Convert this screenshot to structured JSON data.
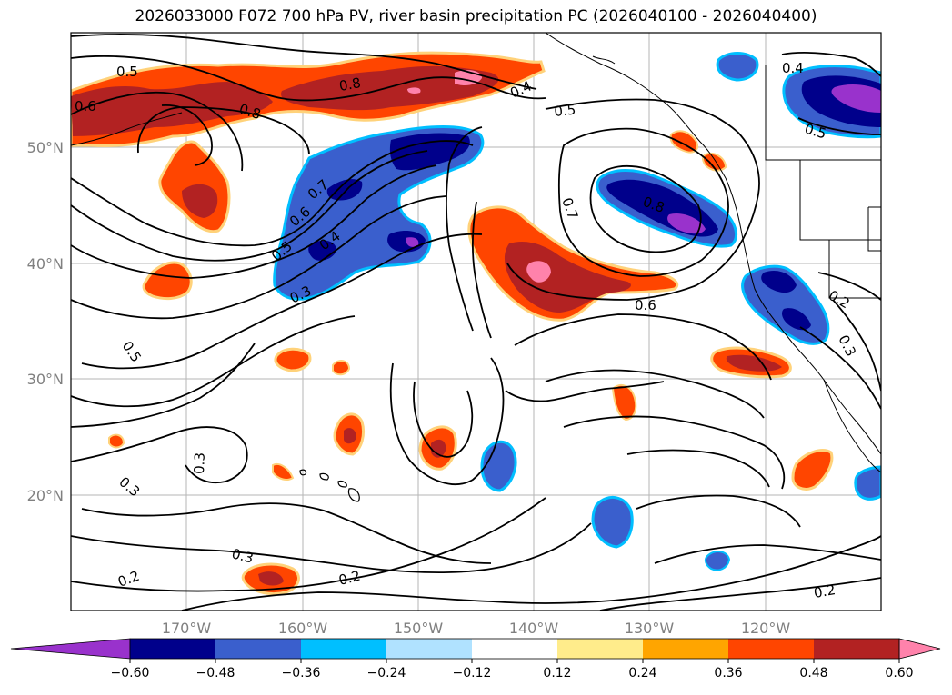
{
  "title": "2026033000 F072 700 hPa PV, river basin precipitation PC (2026040100 - 2026040400)",
  "map": {
    "lon_labels": [
      "170°W",
      "160°W",
      "150°W",
      "140°W",
      "130°W",
      "120°W"
    ],
    "lat_labels": [
      "50°N",
      "40°N",
      "30°N",
      "20°N"
    ],
    "contour_labels": [
      {
        "id": "c1",
        "text": "0.5"
      },
      {
        "id": "c2",
        "text": "0.6"
      },
      {
        "id": "c3",
        "text": "0.8"
      },
      {
        "id": "c4",
        "text": "0.8"
      },
      {
        "id": "c5",
        "text": "0.4"
      },
      {
        "id": "c6",
        "text": "0.5"
      },
      {
        "id": "c7",
        "text": "0.7"
      },
      {
        "id": "c8",
        "text": "0.6"
      },
      {
        "id": "c9",
        "text": "0.5"
      },
      {
        "id": "c10",
        "text": "0.4"
      },
      {
        "id": "c11",
        "text": "0.3"
      },
      {
        "id": "c12",
        "text": "0.7"
      },
      {
        "id": "c13",
        "text": "0.8"
      },
      {
        "id": "c14",
        "text": "0.6"
      },
      {
        "id": "c15",
        "text": "0.5"
      },
      {
        "id": "c16",
        "text": "0.3"
      },
      {
        "id": "c17",
        "text": "0.3"
      },
      {
        "id": "c18",
        "text": "0.3"
      },
      {
        "id": "c19",
        "text": "0.2"
      },
      {
        "id": "c20",
        "text": "0.2"
      },
      {
        "id": "c21",
        "text": "0.2"
      },
      {
        "id": "c22",
        "text": "0.3"
      },
      {
        "id": "c23",
        "text": "0.4"
      },
      {
        "id": "c24",
        "text": "0.5"
      },
      {
        "id": "c25",
        "text": "0.2"
      }
    ]
  },
  "colorbar": {
    "ticks": [
      "−0.60",
      "−0.48",
      "−0.36",
      "−0.24",
      "−0.12",
      "0.12",
      "0.24",
      "0.36",
      "0.48",
      "0.60"
    ],
    "colors": [
      "#9932cc",
      "#00008b",
      "#3a5fcd",
      "#00bfff",
      "#b0e2ff",
      "#ffffff",
      "#ffec8b",
      "#ffa500",
      "#ff4500",
      "#b22222",
      "#ff82ab"
    ]
  }
}
